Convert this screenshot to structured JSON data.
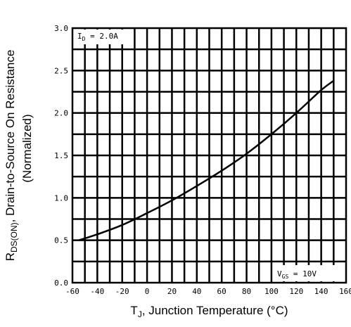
{
  "chart_data": {
    "type": "line",
    "title": "",
    "x": [
      -55,
      -40,
      -20,
      0,
      20,
      40,
      60,
      80,
      100,
      120,
      140,
      150
    ],
    "series": [
      {
        "values": [
          0.5,
          0.57,
          0.68,
          0.82,
          0.97,
          1.14,
          1.32,
          1.52,
          1.75,
          2.0,
          2.27,
          2.38
        ]
      }
    ],
    "xlim": [
      -60,
      160
    ],
    "ylim": [
      0.0,
      3.0
    ],
    "xticks": [
      "-60",
      "-40",
      "-20",
      "0",
      "20",
      "40",
      "60",
      "80",
      "100",
      "120",
      "140",
      "160"
    ],
    "yticks": [
      "0.0",
      "0.5",
      "1.0",
      "1.5",
      "2.0",
      "2.5",
      "3.0"
    ],
    "xlabel": {
      "prefix": "T",
      "sub": "J",
      "rest": ", Junction Temperature (°C)"
    },
    "ylabel": {
      "prefix": "R",
      "sub": "DS(ON)",
      "rest": ", Drain-to-Source On Resistance",
      "line2": "(Normalized)"
    },
    "annotations": {
      "id": {
        "prefix": "I",
        "sub": "D",
        "rest": " = 2.0A"
      },
      "vgs": {
        "prefix": "V",
        "sub": "GS",
        "rest": " = 10V"
      }
    },
    "grid": true,
    "legend": "none"
  }
}
